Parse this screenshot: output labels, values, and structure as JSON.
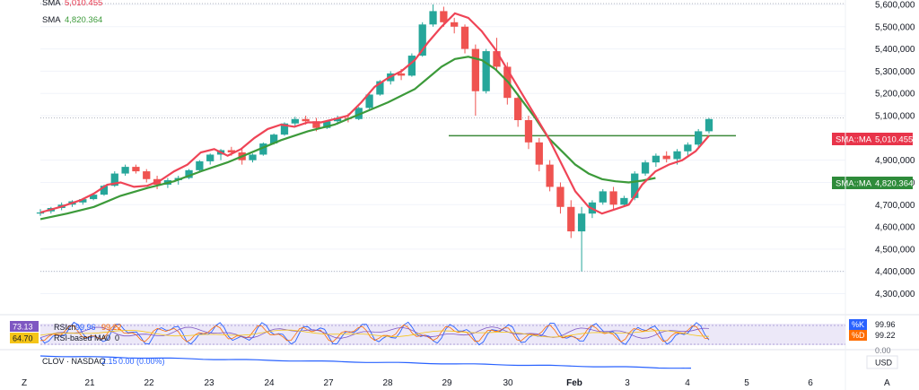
{
  "legend": {
    "sma1_label": "SMA",
    "sma1_value": "5,010.455",
    "sma2_label": "SMA",
    "sma2_value": "4,820.364"
  },
  "price_tags": {
    "sma_fast": {
      "label": "SMA::MA",
      "value": "5,010.455",
      "color": "#e8344a"
    },
    "sma_slow": {
      "label": "SMA::MA",
      "value": "4,820.364",
      "color": "#2e8b3a"
    }
  },
  "colors": {
    "up": "#26a69a",
    "down": "#ef5350",
    "sma_fast": "#ef4456",
    "sma_slow": "#3c9a3a",
    "clov_line": "#2962ff",
    "horizontal_level": "#3c8a3a",
    "stoch_band": "#d8d0f0"
  },
  "indicators": {
    "stoch_label": "RSIch",
    "stoch_k": "99.96",
    "stoch_d": "99.22",
    "stoch_tag_left_1": "73.13",
    "stoch_tag_left_2": "64.70",
    "rsi_label": "RSI-based MA",
    "zero_1": "0",
    "zero_2": "0",
    "k_label": "%K",
    "d_label": "%D",
    "k_value": "99.96",
    "d_value": "99.22",
    "scale_zero": "0.00",
    "clov_label": "CLOV · NASDAQ",
    "clov_value": "2.15",
    "clov_change": "0.00",
    "clov_pct": "(0.00%)"
  },
  "currency": "USD",
  "corner_left": "Z",
  "corner_right": "A",
  "chart_data": {
    "type": "candlestick",
    "y_ticks": [
      "5,600,000",
      "5,500,000",
      "5,400,000",
      "5,300,000",
      "5,200,000",
      "5,100,000",
      "4,900,000",
      "4,800,000",
      "4,700,000",
      "4,600,000",
      "4,500,000",
      "4,400,000",
      "4,300,000"
    ],
    "y_tick_values": [
      5600,
      5500,
      5400,
      5300,
      5200,
      5100,
      4900,
      4800,
      4700,
      4600,
      4500,
      4400,
      4300
    ],
    "ylim": [
      4270,
      5620
    ],
    "x_ticks": [
      "21",
      "22",
      "23",
      "24",
      "27",
      "28",
      "29",
      "30",
      "Feb",
      "3",
      "4",
      "5",
      "6"
    ],
    "horizontal_level": 5010,
    "dotted_level": 5090,
    "sma_fast_points": [
      [
        0,
        4665
      ],
      [
        3,
        4690
      ],
      [
        6,
        4720
      ],
      [
        8,
        4750
      ],
      [
        10,
        4790
      ],
      [
        12,
        4800
      ],
      [
        14,
        4780
      ],
      [
        16,
        4785
      ],
      [
        18,
        4810
      ],
      [
        20,
        4850
      ],
      [
        22,
        4880
      ],
      [
        24,
        4935
      ],
      [
        26,
        4950
      ],
      [
        28,
        4920
      ],
      [
        30,
        4950
      ],
      [
        32,
        5000
      ],
      [
        34,
        5040
      ],
      [
        36,
        5060
      ],
      [
        38,
        5050
      ],
      [
        40,
        5070
      ],
      [
        42,
        5070
      ],
      [
        44,
        5085
      ],
      [
        46,
        5100
      ],
      [
        48,
        5160
      ],
      [
        50,
        5230
      ],
      [
        52,
        5270
      ],
      [
        54,
        5300
      ],
      [
        56,
        5350
      ],
      [
        58,
        5430
      ],
      [
        60,
        5500
      ],
      [
        62,
        5560
      ],
      [
        64,
        5540
      ],
      [
        66,
        5480
      ],
      [
        68,
        5400
      ],
      [
        70,
        5300
      ],
      [
        72,
        5200
      ],
      [
        74,
        5100
      ],
      [
        76,
        5000
      ],
      [
        78,
        4880
      ],
      [
        80,
        4760
      ],
      [
        82,
        4690
      ],
      [
        84,
        4660
      ],
      [
        86,
        4680
      ],
      [
        88,
        4700
      ],
      [
        90,
        4790
      ],
      [
        92,
        4850
      ],
      [
        94,
        4880
      ],
      [
        96,
        4900
      ],
      [
        98,
        4940
      ],
      [
        100,
        5010
      ]
    ],
    "sma_slow_points": [
      [
        0,
        4635
      ],
      [
        4,
        4660
      ],
      [
        8,
        4690
      ],
      [
        12,
        4740
      ],
      [
        16,
        4775
      ],
      [
        20,
        4805
      ],
      [
        24,
        4850
      ],
      [
        28,
        4890
      ],
      [
        32,
        4940
      ],
      [
        36,
        4990
      ],
      [
        40,
        5030
      ],
      [
        44,
        5060
      ],
      [
        48,
        5110
      ],
      [
        52,
        5160
      ],
      [
        56,
        5220
      ],
      [
        58,
        5270
      ],
      [
        60,
        5320
      ],
      [
        62,
        5355
      ],
      [
        64,
        5365
      ],
      [
        66,
        5350
      ],
      [
        68,
        5310
      ],
      [
        70,
        5250
      ],
      [
        72,
        5170
      ],
      [
        74,
        5090
      ],
      [
        76,
        5000
      ],
      [
        78,
        4940
      ],
      [
        80,
        4880
      ],
      [
        82,
        4840
      ],
      [
        84,
        4815
      ],
      [
        86,
        4805
      ],
      [
        88,
        4800
      ],
      [
        90,
        4808
      ],
      [
        92,
        4820
      ]
    ],
    "candles": [
      [
        0,
        4660,
        4680,
        4650,
        4665
      ],
      [
        1,
        4670,
        4690,
        4660,
        4685
      ],
      [
        2,
        4685,
        4710,
        4675,
        4700
      ],
      [
        3,
        4700,
        4720,
        4690,
        4715
      ],
      [
        4,
        4710,
        4730,
        4700,
        4725
      ],
      [
        5,
        4725,
        4750,
        4720,
        4745
      ],
      [
        6,
        4745,
        4790,
        4740,
        4785
      ],
      [
        7,
        4785,
        4850,
        4780,
        4840
      ],
      [
        8,
        4840,
        4880,
        4830,
        4870
      ],
      [
        9,
        4870,
        4880,
        4840,
        4850
      ],
      [
        10,
        4850,
        4860,
        4800,
        4815
      ],
      [
        11,
        4815,
        4830,
        4770,
        4790
      ],
      [
        12,
        4790,
        4820,
        4775,
        4810
      ],
      [
        13,
        4810,
        4830,
        4790,
        4820
      ],
      [
        14,
        4820,
        4860,
        4815,
        4855
      ],
      [
        15,
        4855,
        4900,
        4850,
        4895
      ],
      [
        16,
        4895,
        4930,
        4880,
        4925
      ],
      [
        17,
        4925,
        4950,
        4900,
        4945
      ],
      [
        18,
        4945,
        4960,
        4920,
        4935
      ],
      [
        19,
        4935,
        4950,
        4880,
        4900
      ],
      [
        20,
        4900,
        4930,
        4890,
        4925
      ],
      [
        21,
        4925,
        4980,
        4920,
        4975
      ],
      [
        22,
        4975,
        5020,
        4970,
        5015
      ],
      [
        23,
        5015,
        5070,
        5010,
        5065
      ],
      [
        24,
        5065,
        5095,
        5050,
        5085
      ],
      [
        25,
        5085,
        5100,
        5060,
        5075
      ],
      [
        26,
        5075,
        5090,
        5030,
        5045
      ],
      [
        27,
        5045,
        5080,
        5040,
        5075
      ],
      [
        28,
        5075,
        5100,
        5060,
        5090
      ],
      [
        29,
        5090,
        5110,
        5070,
        5085
      ],
      [
        30,
        5085,
        5140,
        5080,
        5135
      ],
      [
        31,
        5135,
        5200,
        5130,
        5195
      ],
      [
        32,
        5195,
        5260,
        5190,
        5255
      ],
      [
        33,
        5255,
        5300,
        5240,
        5290
      ],
      [
        34,
        5290,
        5310,
        5260,
        5280
      ],
      [
        35,
        5280,
        5380,
        5275,
        5370
      ],
      [
        36,
        5370,
        5520,
        5365,
        5510
      ],
      [
        37,
        5510,
        5600,
        5500,
        5570
      ],
      [
        38,
        5570,
        5590,
        5500,
        5520
      ],
      [
        39,
        5520,
        5540,
        5470,
        5500
      ],
      [
        40,
        5500,
        5510,
        5380,
        5400
      ],
      [
        41,
        5400,
        5420,
        5100,
        5210
      ],
      [
        42,
        5210,
        5400,
        5200,
        5390
      ],
      [
        43,
        5390,
        5450,
        5300,
        5320
      ],
      [
        44,
        5320,
        5340,
        5150,
        5180
      ],
      [
        45,
        5180,
        5200,
        5050,
        5080
      ],
      [
        46,
        5080,
        5100,
        4950,
        4980
      ],
      [
        47,
        4980,
        5000,
        4850,
        4880
      ],
      [
        48,
        4880,
        4900,
        4760,
        4780
      ],
      [
        49,
        4780,
        4800,
        4660,
        4690
      ],
      [
        50,
        4690,
        4720,
        4550,
        4580
      ],
      [
        51,
        4580,
        4690,
        4400,
        4660
      ],
      [
        52,
        4660,
        4720,
        4640,
        4710
      ],
      [
        53,
        4710,
        4770,
        4700,
        4760
      ],
      [
        54,
        4760,
        4780,
        4680,
        4700
      ],
      [
        55,
        4700,
        4740,
        4690,
        4730
      ],
      [
        56,
        4730,
        4850,
        4720,
        4840
      ],
      [
        57,
        4840,
        4900,
        4830,
        4890
      ],
      [
        58,
        4890,
        4930,
        4870,
        4920
      ],
      [
        59,
        4920,
        4940,
        4890,
        4905
      ],
      [
        60,
        4905,
        4950,
        4880,
        4940
      ],
      [
        61,
        4940,
        4980,
        4920,
        4970
      ],
      [
        62,
        4970,
        5040,
        4960,
        5030
      ],
      [
        63,
        5030,
        5090,
        5020,
        5085
      ]
    ]
  }
}
